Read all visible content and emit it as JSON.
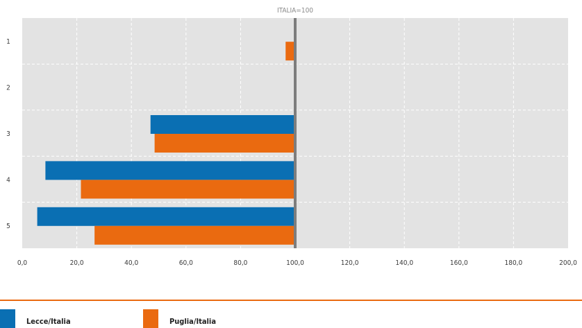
{
  "chart_data": {
    "type": "bar",
    "orientation": "horizontal",
    "categories": [
      "1",
      "2",
      "3",
      "4",
      "5"
    ],
    "series": [
      {
        "name": "Lecce/Italia",
        "color": "#0a6fb3",
        "values": [
          null,
          null,
          47.0,
          8.5,
          5.5
        ]
      },
      {
        "name": "Puglia/Italia",
        "color": "#ea6a10",
        "values": [
          96.5,
          null,
          48.5,
          21.5,
          26.5
        ]
      }
    ],
    "reference_line": {
      "value": 100,
      "label": "ITALIA=100"
    },
    "xlim": [
      0,
      200
    ],
    "xticks": [
      "0,0",
      "20,0",
      "40,0",
      "60,0",
      "80,0",
      "100,0",
      "120,0",
      "140,0",
      "160,0",
      "180,0",
      "200,0"
    ],
    "grid": true,
    "legend_position": "bottom-left",
    "plot_background": "#e3e3e3",
    "legend_rule_color": "#ea6a10"
  }
}
